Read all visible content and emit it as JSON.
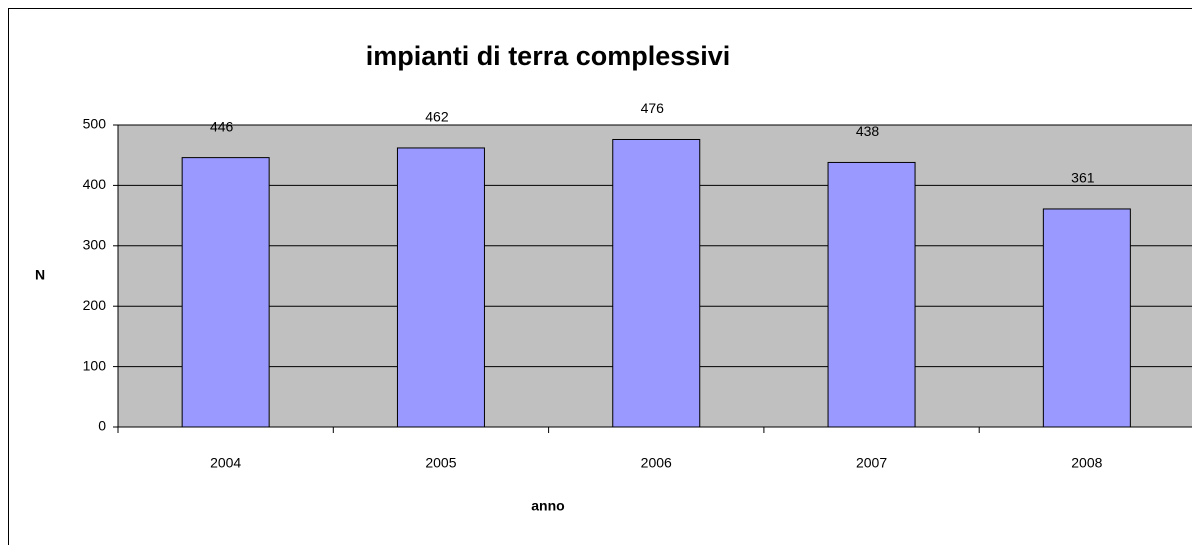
{
  "chart_data": {
    "type": "bar",
    "title": "impianti di terra complessivi",
    "categories": [
      "2004",
      "2005",
      "2006",
      "2007",
      "2008"
    ],
    "values": [
      446,
      462,
      476,
      438,
      361
    ],
    "color": "#9999ff",
    "x_label": "anno",
    "y_label": "N",
    "ylim": [
      0,
      500
    ],
    "yticks": [
      0,
      100,
      200,
      300,
      400,
      500
    ],
    "grid": true
  }
}
